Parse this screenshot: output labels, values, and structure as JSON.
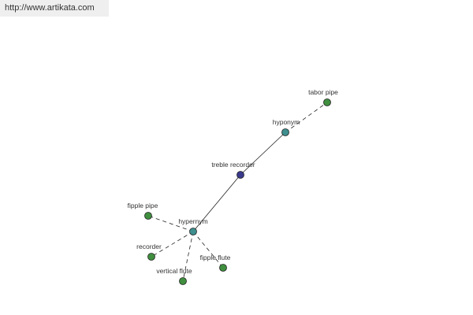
{
  "header": {
    "url": "http://www.artikata.com"
  },
  "nodes": [
    {
      "label": "treble recorder"
    },
    {
      "label": "hyponym"
    },
    {
      "label": "tabor pipe"
    },
    {
      "label": "hypernym"
    },
    {
      "label": "fipple pipe"
    },
    {
      "label": "recorder"
    },
    {
      "label": "vertical flute"
    },
    {
      "label": "fipple flute"
    }
  ]
}
